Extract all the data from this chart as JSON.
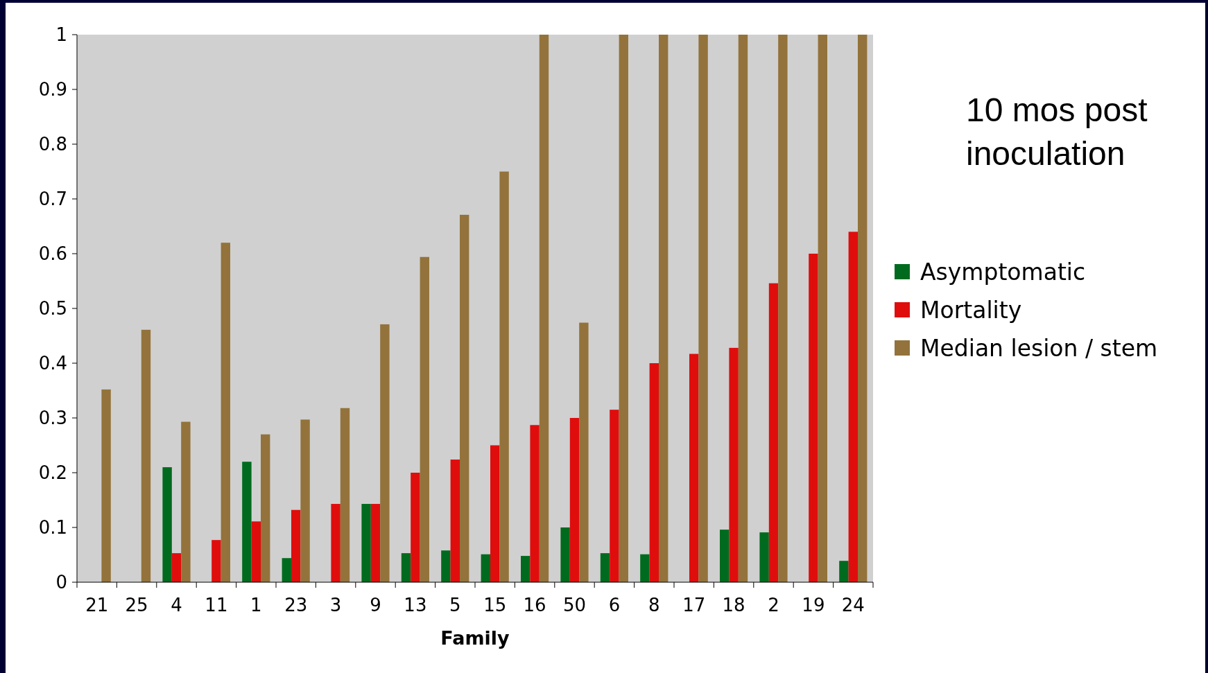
{
  "chart_data": {
    "type": "bar",
    "xlabel": "Family",
    "annotations": [
      "10 mos post inoculation"
    ],
    "categories": [
      "21",
      "25",
      "4",
      "11",
      "1",
      "23",
      "3",
      "9",
      "13",
      "5",
      "15",
      "16",
      "50",
      "6",
      "8",
      "17",
      "18",
      "2",
      "19",
      "24"
    ],
    "series": [
      {
        "name": "Asymptomatic",
        "color": "#006b1e",
        "values": [
          0,
          0,
          0.21,
          0,
          0.22,
          0.044,
          0,
          0.143,
          0.053,
          0.058,
          0.051,
          0.048,
          0.1,
          0.053,
          0.051,
          0,
          0.096,
          0.091,
          0,
          0.039
        ]
      },
      {
        "name": "Mortality",
        "color": "#e00d0d",
        "values": [
          0,
          0,
          0.053,
          0.077,
          0.111,
          0.132,
          0.143,
          0.143,
          0.2,
          0.224,
          0.25,
          0.287,
          0.3,
          0.315,
          0.4,
          0.417,
          0.428,
          0.546,
          0.6,
          0.64
        ]
      },
      {
        "name": "Median lesion / stem",
        "color": "#93733b",
        "values": [
          0.352,
          0.461,
          0.293,
          0.62,
          0.27,
          0.297,
          0.318,
          0.471,
          0.594,
          0.671,
          0.75,
          1,
          0.474,
          1,
          1,
          1,
          1,
          1,
          1,
          1
        ]
      }
    ],
    "ylim": [
      0,
      1
    ],
    "yticks": [
      0,
      0.1,
      0.2,
      0.3,
      0.4,
      0.5,
      0.6,
      0.7,
      0.8,
      0.9,
      1
    ],
    "legend": "right"
  }
}
